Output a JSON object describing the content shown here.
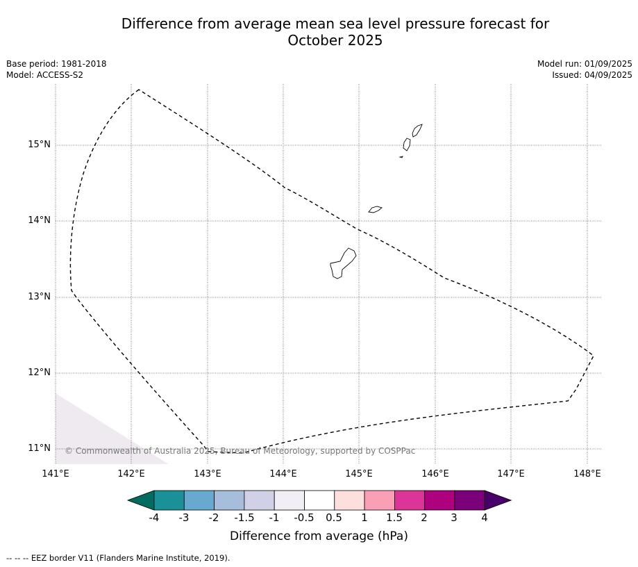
{
  "title_line1": "Difference from average mean sea level pressure forecast for",
  "title_line2": "October 2025",
  "meta_left": {
    "base_period": "Base period: 1981-2018",
    "model": "Model: ACCESS-S2"
  },
  "meta_right": {
    "model_run": "Model run: 01/09/2025",
    "issued": "Issued: 04/09/2025"
  },
  "map": {
    "latitude_labels": [
      "15°N",
      "14°N",
      "13°N",
      "12°N",
      "11°N"
    ],
    "longitude_labels": [
      "141°E",
      "142°E",
      "143°E",
      "144°E",
      "145°E",
      "146°E",
      "147°E",
      "148°E"
    ],
    "copyright": "© Commonwealth of Australia 2025, Bureau of Meteorology, supported by COSPPac",
    "shaded_region_value": "-1 to -0.5 hPa",
    "gridlines": true,
    "border_style": "dashed",
    "land_color": "#ffffff",
    "shading_color": "#efe9f0"
  },
  "colorbar": {
    "label": "Difference from average (hPa)",
    "ticks": [
      "-4",
      "-3",
      "-2",
      "-1.5",
      "-1",
      "-0.5",
      "0.5",
      "1",
      "1.5",
      "2",
      "3",
      "4"
    ],
    "colors": [
      "#006b5e",
      "#1c9099",
      "#67a9cf",
      "#a6bddb",
      "#d0d1e6",
      "#f1eef6",
      "#ffffff",
      "#fde0dd",
      "#fa9fb5",
      "#dd3497",
      "#ae017e",
      "#7a0177",
      "#49006a"
    ]
  },
  "footnote": "-- -- -- EEZ border V11 (Flanders Marine Institute, 2019)."
}
